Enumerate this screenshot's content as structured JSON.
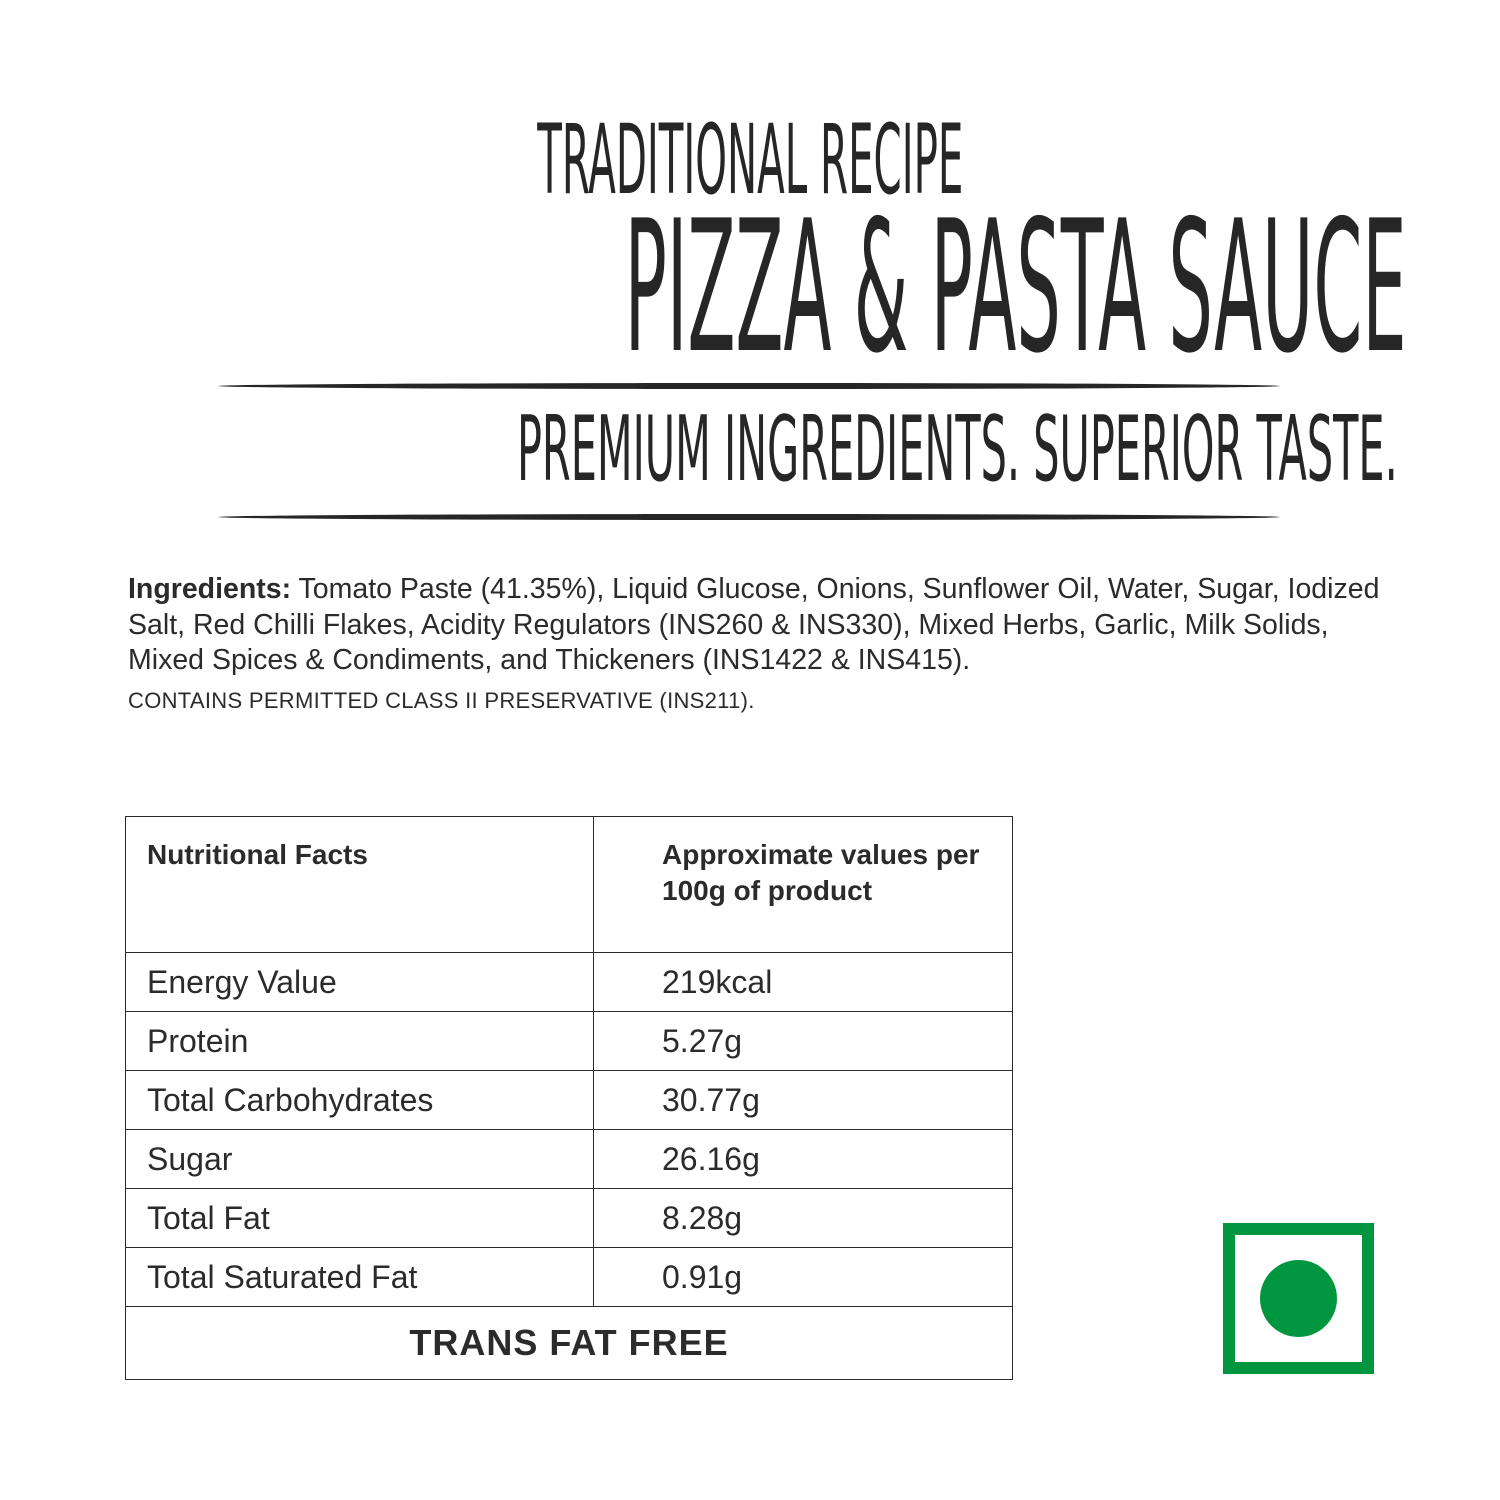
{
  "header": {
    "subtitle": "TRADITIONAL RECIPE",
    "title": "PIZZA & PASTA SAUCE",
    "tagline": "PREMIUM INGREDIENTS. SUPERIOR TASTE."
  },
  "ingredients": {
    "label": "Ingredients:",
    "text": " Tomato Paste (41.35%), Liquid Glucose, Onions, Sunflower Oil, Water, Sugar, Iodized Salt, Red Chilli Flakes, Acidity Regulators (INS260 & INS330), Mixed Herbs, Garlic, Milk Solids, Mixed Spices & Condiments, and Thickeners (INS1422 & INS415).",
    "preservative": "CONTAINS PERMITTED CLASS II PRESERVATIVE (INS211)."
  },
  "nutrition": {
    "headers": [
      "Nutritional Facts",
      "Approximate values per 100g of product"
    ],
    "rows": [
      [
        "Energy Value",
        "219kcal"
      ],
      [
        "Protein",
        "5.27g"
      ],
      [
        "Total Carbohydrates",
        "30.77g"
      ],
      [
        "Sugar",
        "26.16g"
      ],
      [
        "Total Fat",
        "8.28g"
      ],
      [
        "Total Saturated Fat",
        "0.91g"
      ]
    ],
    "footer": "TRANS FAT FREE"
  },
  "veg_mark": {
    "icon": "vegetarian-mark-icon",
    "color": "#00963f"
  }
}
